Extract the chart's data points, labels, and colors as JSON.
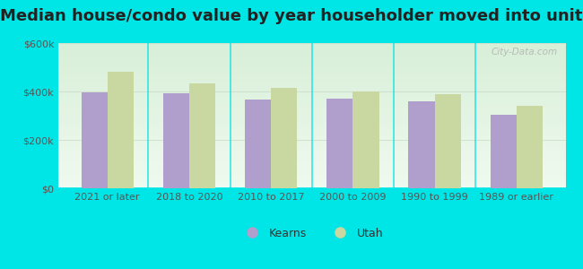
{
  "title": "Median house/condo value by year householder moved into unit",
  "categories": [
    "2021 or later",
    "2018 to 2020",
    "2010 to 2017",
    "2000 to 2009",
    "1990 to 1999",
    "1989 or earlier"
  ],
  "kearns_values": [
    397000,
    393000,
    368000,
    372000,
    360000,
    305000
  ],
  "utah_values": [
    480000,
    435000,
    413000,
    400000,
    390000,
    340000
  ],
  "kearns_color": "#b09fcc",
  "utah_color": "#c8d8a0",
  "background_color": "#00e5e5",
  "plot_bg": "#e8f5e8",
  "ylim": [
    0,
    600000
  ],
  "yticks": [
    0,
    200000,
    400000,
    600000
  ],
  "ytick_labels": [
    "$0",
    "$200k",
    "$400k",
    "$600k"
  ],
  "legend_kearns": "Kearns",
  "legend_utah": "Utah",
  "watermark": "City-Data.com",
  "title_fontsize": 13,
  "bar_width": 0.32,
  "tick_fontsize": 8
}
